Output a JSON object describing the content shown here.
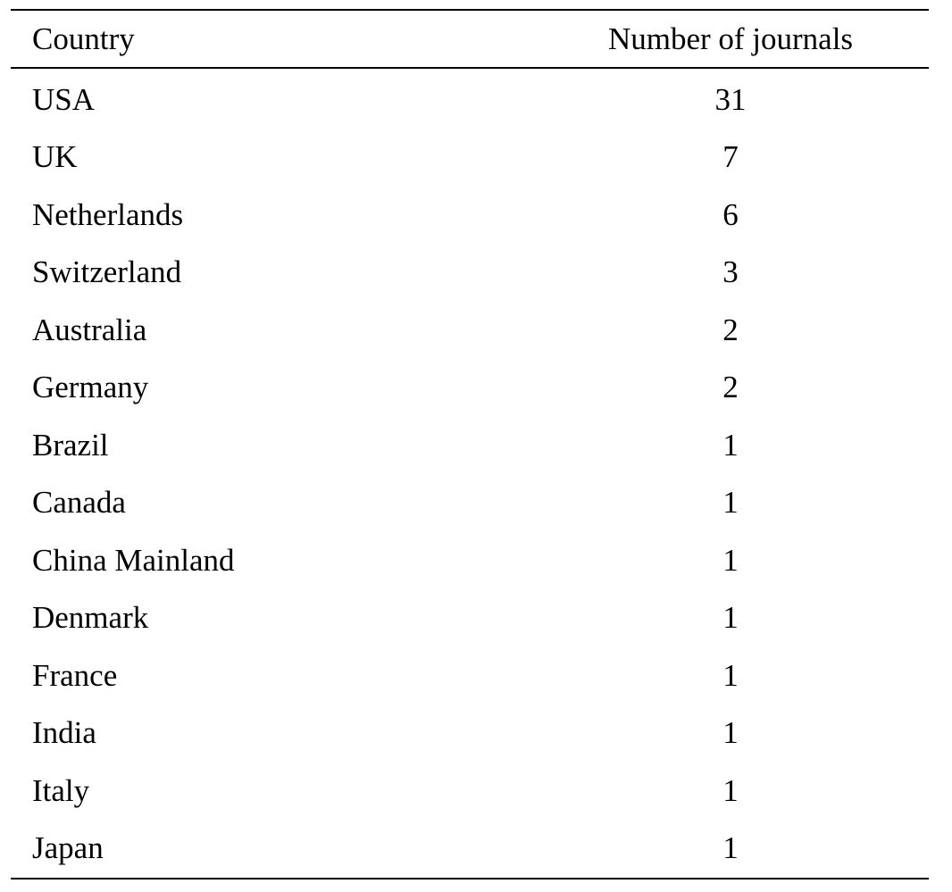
{
  "table": {
    "headers": {
      "country": "Country",
      "count": "Number of journals"
    },
    "rows": [
      {
        "country": "USA",
        "count": "31"
      },
      {
        "country": "UK",
        "count": "7"
      },
      {
        "country": "Netherlands",
        "count": "6"
      },
      {
        "country": "Switzerland",
        "count": "3"
      },
      {
        "country": "Australia",
        "count": "2"
      },
      {
        "country": "Germany",
        "count": "2"
      },
      {
        "country": "Brazil",
        "count": "1"
      },
      {
        "country": "Canada",
        "count": "1"
      },
      {
        "country": "China Mainland",
        "count": "1"
      },
      {
        "country": "Denmark",
        "count": "1"
      },
      {
        "country": "France",
        "count": "1"
      },
      {
        "country": "India",
        "count": "1"
      },
      {
        "country": "Italy",
        "count": "1"
      },
      {
        "country": "Japan",
        "count": "1"
      }
    ]
  }
}
